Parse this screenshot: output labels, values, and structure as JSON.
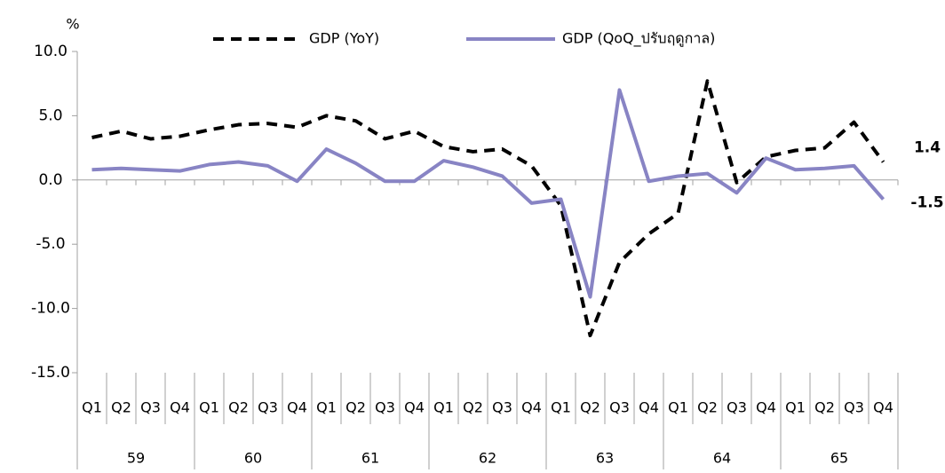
{
  "chart_data": {
    "type": "line",
    "y_label": "%",
    "categories": [
      "Q1",
      "Q2",
      "Q3",
      "Q4",
      "Q1",
      "Q2",
      "Q3",
      "Q4",
      "Q1",
      "Q2",
      "Q3",
      "Q4",
      "Q1",
      "Q2",
      "Q3",
      "Q4",
      "Q1",
      "Q2",
      "Q3",
      "Q4",
      "Q1",
      "Q2",
      "Q3",
      "Q4",
      "Q1",
      "Q2",
      "Q3",
      "Q4"
    ],
    "year_groups": [
      "59",
      "60",
      "61",
      "62",
      "63",
      "64",
      "65"
    ],
    "series": [
      {
        "name": "GDP (YoY)",
        "color": "#000000",
        "dashed": true,
        "values": [
          3.3,
          3.8,
          3.2,
          3.4,
          3.9,
          4.3,
          4.4,
          4.1,
          5.0,
          4.6,
          3.2,
          3.8,
          2.6,
          2.2,
          2.4,
          1.1,
          -2.0,
          -12.1,
          -6.4,
          -4.2,
          -2.6,
          7.7,
          -0.2,
          1.8,
          2.3,
          2.5,
          4.5,
          1.4
        ],
        "end_label": "1.4"
      },
      {
        "name": "GDP (QoQ_ปรับฤดูกาล)",
        "color": "#8884c4",
        "dashed": false,
        "values": [
          0.8,
          0.9,
          0.8,
          0.7,
          1.2,
          1.4,
          1.1,
          -0.1,
          2.4,
          1.3,
          -0.1,
          -0.1,
          1.5,
          1.0,
          0.3,
          -1.8,
          -1.5,
          -9.1,
          7.0,
          -0.1,
          0.3,
          0.5,
          -1.0,
          1.7,
          0.8,
          0.9,
          1.1,
          -1.5
        ],
        "end_label": "-1.5"
      }
    ],
    "ylim": [
      -15,
      10
    ],
    "yticks": [
      {
        "value": -15,
        "label": "-15.0"
      },
      {
        "value": -10,
        "label": "-10.0"
      },
      {
        "value": -5,
        "label": "-5.0"
      },
      {
        "value": 0,
        "label": "0.0"
      },
      {
        "value": 5,
        "label": "5.0"
      },
      {
        "value": 10,
        "label": "10.0"
      }
    ],
    "grid": false
  }
}
